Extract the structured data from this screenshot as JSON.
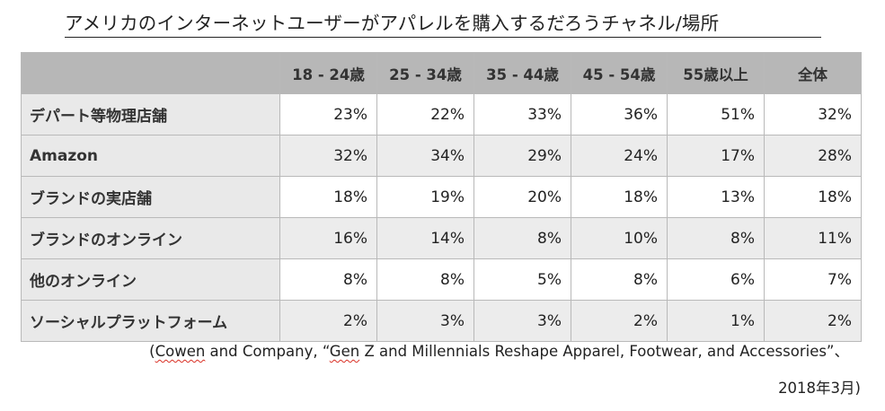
{
  "title": "アメリカのインターネットユーザーがアパレルを購入するだろうチャネル/場所",
  "table": {
    "columns": [
      "18 - 24歳",
      "25 - 34歳",
      "35 - 44歳",
      "45 - 54歳",
      "55歳以上",
      "全体"
    ],
    "rows": [
      {
        "label": "デパート等物理店舗",
        "values": [
          "23%",
          "22%",
          "33%",
          "36%",
          "51%",
          "32%"
        ]
      },
      {
        "label": "Amazon",
        "values": [
          "32%",
          "34%",
          "29%",
          "24%",
          "17%",
          "28%"
        ]
      },
      {
        "label": "ブランドの実店舗",
        "values": [
          "18%",
          "19%",
          "20%",
          "18%",
          "13%",
          "18%"
        ]
      },
      {
        "label": "ブランドのオンライン",
        "values": [
          "16%",
          "14%",
          "8%",
          "10%",
          "8%",
          "11%"
        ]
      },
      {
        "label": "他のオンライン",
        "values": [
          "8%",
          "8%",
          "5%",
          "8%",
          "6%",
          "7%"
        ]
      },
      {
        "label": "ソーシャルプラットフォーム",
        "values": [
          "2%",
          "3%",
          "3%",
          "2%",
          "1%",
          "2%"
        ]
      }
    ]
  },
  "source": {
    "open": "(",
    "word1": "Cowen",
    "mid1": " and Company, “",
    "word2": "Gen",
    "rest": " Z and Millennials Reshape Apparel, Footwear, and Accessories”、",
    "date": "2018年3月)"
  }
}
